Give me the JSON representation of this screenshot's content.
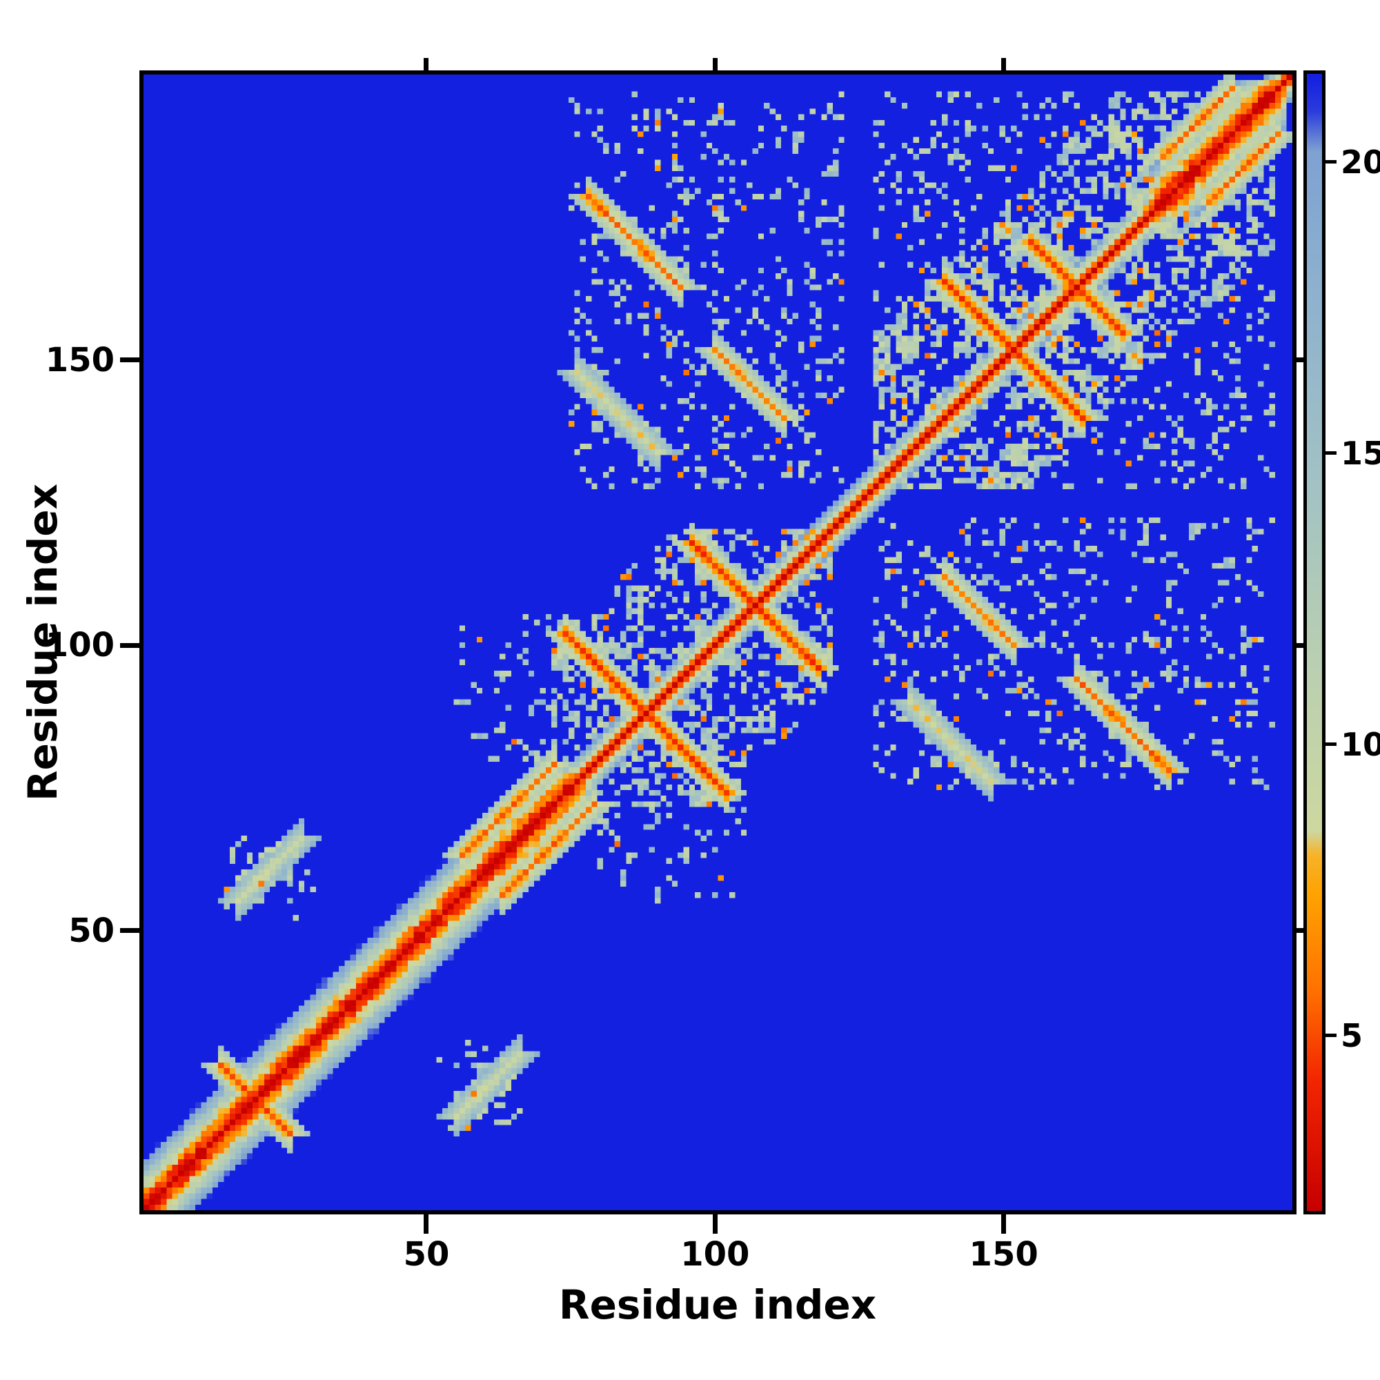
{
  "chart_data": {
    "type": "heatmap",
    "title": "",
    "xlabel": "Residue index",
    "ylabel": "Residue index",
    "x_ticks": [
      50,
      100,
      150
    ],
    "y_ticks": [
      50,
      100,
      150
    ],
    "x_range": [
      1,
      200
    ],
    "y_range": [
      1,
      200
    ],
    "n_residues": 200,
    "value_range": [
      2,
      21.5
    ],
    "colorbar_ticks": [
      5,
      10,
      15,
      20
    ],
    "colormap_stops": [
      [
        2.0,
        "#c80000"
      ],
      [
        4.2,
        "#f32500"
      ],
      [
        5.8,
        "#ff7300"
      ],
      [
        7.4,
        "#ffa200"
      ],
      [
        8.1,
        "#f7b32a"
      ],
      [
        8.5,
        "#cdd8a0"
      ],
      [
        11.5,
        "#b9cfb2"
      ],
      [
        14.5,
        "#a2c2c4"
      ],
      [
        18.0,
        "#8db0cf"
      ],
      [
        20.2,
        "#7fa2d2"
      ],
      [
        20.9,
        "#2b3bdc"
      ],
      [
        21.5,
        "#1420e0"
      ]
    ],
    "background_color": "#1420e0",
    "frame_color": "#000000",
    "seed": 42,
    "sequence_band": {
      "base": 2,
      "linear": 3.0,
      "quad": 0.35,
      "halfwidth": 5
    },
    "helix_segments": [
      [
        1,
        75
      ],
      [
        176,
        197
      ]
    ],
    "helix_band": {
      "base": 2,
      "linear": 1.6,
      "quad": 0.07,
      "halfwidth": 10,
      "noise": 1.5
    },
    "streaks": [
      {
        "i0": 74,
        "j0": 102,
        "len": 28,
        "dir": -1,
        "base": 4.5
      },
      {
        "i0": 96,
        "j0": 118,
        "len": 22,
        "dir": -1,
        "base": 4.5
      },
      {
        "i0": 140,
        "j0": 164,
        "len": 24,
        "dir": -1,
        "base": 4.5
      },
      {
        "i0": 155,
        "j0": 171,
        "len": 16,
        "dir": -1,
        "base": 5.0
      },
      {
        "i0": 78,
        "j0": 179,
        "len": 16,
        "dir": -1,
        "base": 5.5
      },
      {
        "i0": 100,
        "j0": 152,
        "len": 12,
        "dir": -1,
        "base": 6.0
      },
      {
        "i0": 56,
        "j0": 63,
        "len": 16,
        "dir": 1,
        "base": 5.5
      },
      {
        "i0": 14,
        "j0": 26,
        "len": 10,
        "dir": -1,
        "base": 5.0
      },
      {
        "i0": 17,
        "j0": 55,
        "len": 11,
        "dir": 1,
        "base": 9.0
      },
      {
        "i0": 178,
        "j0": 186,
        "len": 12,
        "dir": 1,
        "base": 5.5
      },
      {
        "i0": 76,
        "j0": 148,
        "len": 14,
        "dir": -1,
        "base": 8.5
      }
    ],
    "clouds": [
      {
        "i": [
          72,
          120
        ],
        "j": [
          72,
          120
        ],
        "maxsep": 28,
        "density": 0.26
      },
      {
        "i": [
          128,
          197
        ],
        "j": [
          128,
          197
        ],
        "maxsep": 26,
        "density": 0.26
      },
      {
        "i": [
          75,
          122
        ],
        "j": [
          128,
          197
        ],
        "maxsep": 0,
        "density": 0.17
      },
      {
        "i": [
          128,
          197
        ],
        "j": [
          128,
          197
        ],
        "maxsep": 0,
        "density": 0.1
      },
      {
        "i": [
          15,
          30
        ],
        "j": [
          52,
          66
        ],
        "maxsep": 0,
        "density": 0.28
      },
      {
        "i": [
          55,
          75
        ],
        "j": [
          80,
          105
        ],
        "maxsep": 0,
        "density": 0.16
      }
    ],
    "cloud_value_range": [
      9,
      17
    ],
    "orange_dot_prob": 0.05
  }
}
